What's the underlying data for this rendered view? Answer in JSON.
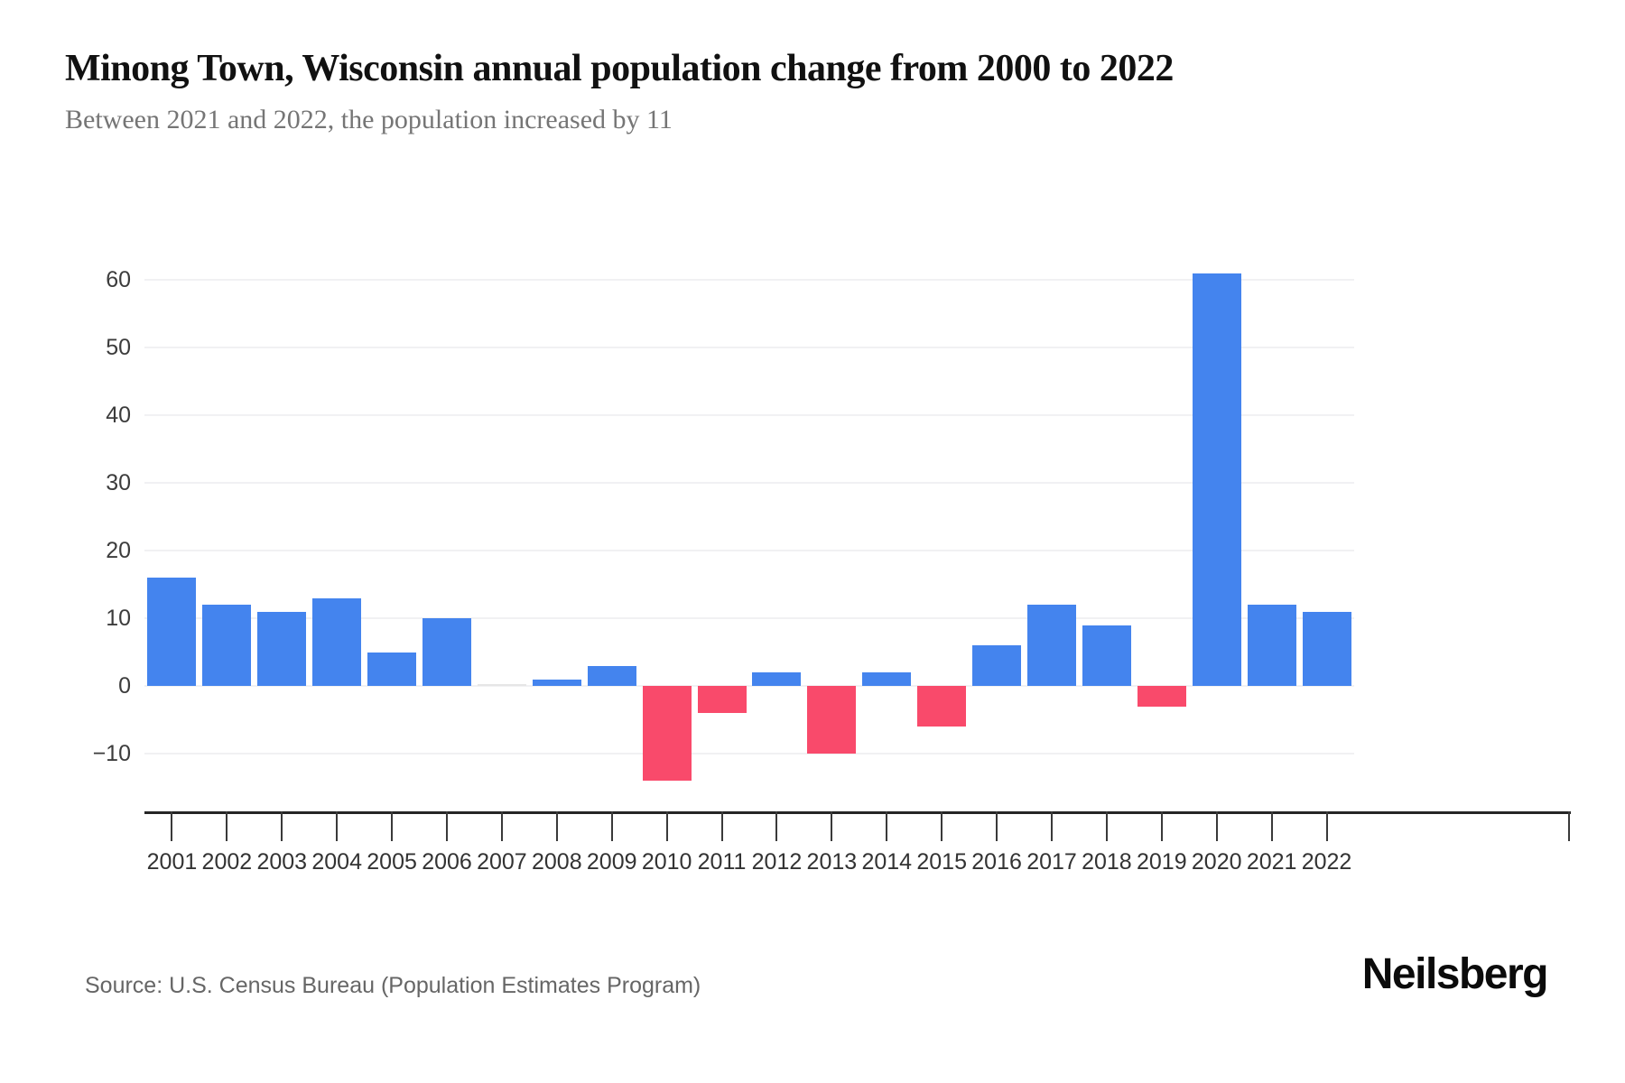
{
  "header": {
    "title": "Minong Town, Wisconsin annual population change from 2000 to 2022",
    "subtitle": "Between 2021 and 2022, the population increased by 11"
  },
  "chart_data": {
    "type": "bar",
    "title": "Minong Town, Wisconsin annual population change from 2000 to 2022",
    "subtitle": "Between 2021 and 2022, the population increased by 11",
    "categories": [
      "2001",
      "2002",
      "2003",
      "2004",
      "2005",
      "2006",
      "2007",
      "2008",
      "2009",
      "2010",
      "2011",
      "2012",
      "2013",
      "2014",
      "2015",
      "2016",
      "2017",
      "2018",
      "2019",
      "2020",
      "2021",
      "2022"
    ],
    "values": [
      16,
      12,
      11,
      13,
      5,
      10,
      0,
      1,
      3,
      -14,
      -4,
      2,
      -10,
      2,
      -6,
      6,
      12,
      9,
      -3,
      61,
      12,
      11
    ],
    "xlabel": "",
    "ylabel": "",
    "yticks": [
      60,
      50,
      40,
      30,
      20,
      10,
      0,
      -10
    ],
    "ylim": [
      -14,
      61
    ],
    "grid": true,
    "legend": false,
    "positive_color": "#4484ee",
    "negative_color": "#f94a6b",
    "zero_bar_color": "#e6e6e6"
  },
  "footer": {
    "source": "Source: U.S. Census Bureau (Population Estimates Program)",
    "logo": "Neilsberg"
  }
}
